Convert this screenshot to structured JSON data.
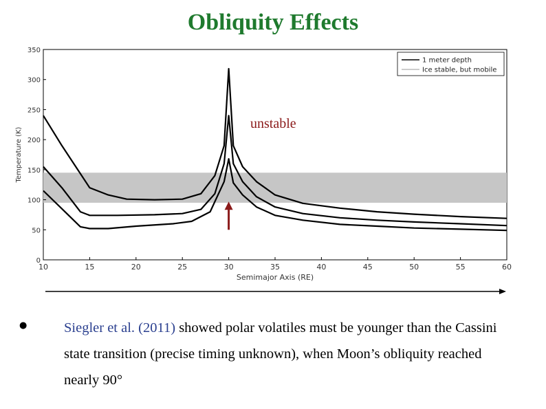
{
  "slide": {
    "title": "Obliquity Effects",
    "bullet_char": "●",
    "bullet_cite": "Siegler et al. (2011)",
    "bullet_rest": " showed polar volatiles must be younger than the Cassini state transition (precise timing unknown), when Moon’s obliquity reached nearly 90°"
  },
  "colors": {
    "title": "#1f7a2e",
    "annotation": "#8b1a1a",
    "band": "#c6c6c6",
    "cite": "#2a3f8f"
  },
  "chart_data": {
    "type": "line",
    "xlabel": "Semimajor Axis (RE)",
    "ylabel": "Temperature (K)",
    "xlim": [
      10,
      60
    ],
    "ylim": [
      0,
      350
    ],
    "xticks": [
      10,
      15,
      20,
      25,
      30,
      35,
      40,
      45,
      50,
      55,
      60
    ],
    "yticks": [
      0,
      50,
      100,
      150,
      200,
      250,
      300,
      350
    ],
    "band": {
      "y0": 95,
      "y1": 145
    },
    "annotation": {
      "text": "unstable",
      "x": 30,
      "y": 97
    },
    "legend": [
      {
        "label": "1 meter depth",
        "color": "#000000"
      },
      {
        "label": "Ice stable, but mobile",
        "color": "#9a9a9a"
      }
    ],
    "series": [
      {
        "name": "upper",
        "points": [
          [
            10,
            240
          ],
          [
            12,
            190
          ],
          [
            15,
            120
          ],
          [
            17,
            108
          ],
          [
            19,
            101
          ],
          [
            22,
            100
          ],
          [
            25,
            101
          ],
          [
            27,
            110
          ],
          [
            28.5,
            140
          ],
          [
            29.5,
            190
          ],
          [
            30,
            318
          ],
          [
            30.5,
            190
          ],
          [
            31.5,
            155
          ],
          [
            33,
            130
          ],
          [
            35,
            108
          ],
          [
            38,
            94
          ],
          [
            42,
            86
          ],
          [
            46,
            80
          ],
          [
            50,
            76
          ],
          [
            55,
            72
          ],
          [
            60,
            69
          ]
        ]
      },
      {
        "name": "middle",
        "points": [
          [
            10,
            155
          ],
          [
            12,
            120
          ],
          [
            14,
            80
          ],
          [
            15,
            74
          ],
          [
            18,
            74
          ],
          [
            22,
            75
          ],
          [
            25,
            77
          ],
          [
            27,
            84
          ],
          [
            28.5,
            110
          ],
          [
            29.5,
            160
          ],
          [
            30,
            240
          ],
          [
            30.5,
            160
          ],
          [
            31.5,
            130
          ],
          [
            33,
            105
          ],
          [
            35,
            88
          ],
          [
            38,
            77
          ],
          [
            42,
            70
          ],
          [
            46,
            66
          ],
          [
            50,
            63
          ],
          [
            55,
            60
          ],
          [
            60,
            57
          ]
        ]
      },
      {
        "name": "lower",
        "points": [
          [
            10,
            115
          ],
          [
            12,
            85
          ],
          [
            14,
            55
          ],
          [
            15,
            52
          ],
          [
            17,
            52
          ],
          [
            20,
            56
          ],
          [
            24,
            60
          ],
          [
            26,
            64
          ],
          [
            28,
            80
          ],
          [
            29.5,
            130
          ],
          [
            30,
            168
          ],
          [
            30.5,
            128
          ],
          [
            31.5,
            108
          ],
          [
            33,
            88
          ],
          [
            35,
            74
          ],
          [
            38,
            66
          ],
          [
            42,
            59
          ],
          [
            46,
            56
          ],
          [
            50,
            53
          ],
          [
            55,
            51
          ],
          [
            60,
            49
          ]
        ]
      }
    ]
  }
}
